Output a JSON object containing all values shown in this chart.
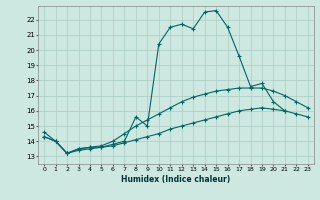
{
  "xlabel": "Humidex (Indice chaleur)",
  "bg_color": "#cce8e0",
  "grid_color": "#aaccc4",
  "line_color": "#006666",
  "xlim": [
    -0.5,
    23.5
  ],
  "ylim": [
    12.5,
    22.9
  ],
  "yticks": [
    13,
    14,
    15,
    16,
    17,
    18,
    19,
    20,
    21,
    22
  ],
  "xticks": [
    0,
    1,
    2,
    3,
    4,
    5,
    6,
    7,
    8,
    9,
    10,
    11,
    12,
    13,
    14,
    15,
    16,
    17,
    18,
    19,
    20,
    21,
    22,
    23
  ],
  "line1_x": [
    0,
    1,
    2,
    3,
    4,
    5,
    6,
    7,
    8,
    9,
    10,
    11,
    12,
    13,
    14,
    15,
    16,
    17,
    18,
    19,
    20,
    21
  ],
  "line1_y": [
    14.6,
    14.0,
    13.2,
    13.5,
    13.6,
    13.6,
    13.8,
    14.0,
    15.6,
    15.0,
    20.4,
    21.5,
    21.7,
    21.4,
    22.5,
    22.6,
    21.5,
    19.6,
    17.6,
    17.8,
    16.6,
    16.0
  ],
  "line2_x": [
    0,
    1,
    2,
    3,
    4,
    5,
    6,
    7,
    8,
    9,
    10,
    11,
    12,
    13,
    14,
    15,
    16,
    17,
    18,
    19,
    20,
    21,
    22,
    23
  ],
  "line2_y": [
    14.3,
    14.0,
    13.2,
    13.5,
    13.6,
    13.7,
    14.0,
    14.5,
    15.0,
    15.4,
    15.8,
    16.2,
    16.6,
    16.9,
    17.1,
    17.3,
    17.4,
    17.5,
    17.5,
    17.5,
    17.3,
    17.0,
    16.6,
    16.2
  ],
  "line3_x": [
    0,
    1,
    2,
    3,
    4,
    5,
    6,
    7,
    8,
    9,
    10,
    11,
    12,
    13,
    14,
    15,
    16,
    17,
    18,
    19,
    20,
    21,
    22,
    23
  ],
  "line3_y": [
    14.3,
    14.0,
    13.2,
    13.4,
    13.5,
    13.6,
    13.7,
    13.9,
    14.1,
    14.3,
    14.5,
    14.8,
    15.0,
    15.2,
    15.4,
    15.6,
    15.8,
    16.0,
    16.1,
    16.2,
    16.1,
    16.0,
    15.8,
    15.6
  ]
}
